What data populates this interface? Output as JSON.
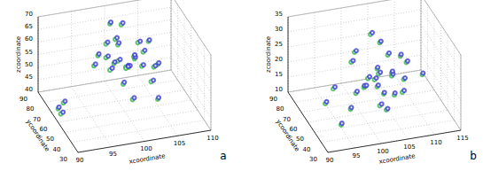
{
  "chart_data": [
    {
      "type": "scatter",
      "annotation": "a",
      "x_label": "xcoordinate",
      "y_label": "ycoordinate",
      "z_label": "zcoordinate",
      "xlim": [
        90,
        110
      ],
      "xticks": [
        90,
        95,
        100,
        105,
        110
      ],
      "ylim": [
        30,
        90
      ],
      "yticks": [
        30,
        40,
        50,
        60,
        70,
        80,
        90
      ],
      "zlim": [
        40,
        70
      ],
      "zticks": [
        40,
        45,
        50,
        55,
        60,
        65,
        70
      ],
      "grid": true,
      "marker": "circle",
      "series": [
        {
          "color": "#33b54a",
          "values": [
            [
              101,
              75,
              68
            ],
            [
              100,
              82,
              66
            ],
            [
              103,
              70,
              62
            ],
            [
              99,
              78,
              60
            ],
            [
              102,
              65,
              58
            ],
            [
              104,
              72,
              57
            ],
            [
              100,
              70,
              56
            ],
            [
              98,
              80,
              55
            ],
            [
              101,
              68,
              54
            ],
            [
              103,
              76,
              54
            ],
            [
              105,
              66,
              53
            ],
            [
              99,
              72,
              52
            ],
            [
              102,
              74,
              51
            ],
            [
              100,
              62,
              50
            ],
            [
              104,
              60,
              50
            ],
            [
              106,
              70,
              52
            ],
            [
              97,
              76,
              53
            ],
            [
              101,
              80,
              58
            ],
            [
              103,
              64,
              55
            ],
            [
              99,
              66,
              57
            ],
            [
              102,
              78,
              49
            ],
            [
              105,
              74,
              60
            ],
            [
              100,
              74,
              63
            ],
            [
              98,
              68,
              59
            ],
            [
              91,
              70,
              41
            ],
            [
              92,
              72,
              42
            ],
            [
              91,
              66,
              40.5
            ],
            [
              104,
              50,
              47
            ],
            [
              101,
              58,
              45
            ]
          ]
        },
        {
          "color": "#3b3bd1",
          "values": [
            [
              101.3,
              75.5,
              68.4
            ],
            [
              100.2,
              82.6,
              66.3
            ],
            [
              103.4,
              70.4,
              62.2
            ],
            [
              99.3,
              78.3,
              60.5
            ],
            [
              102.2,
              65.7,
              58.3
            ],
            [
              104.3,
              72.4,
              57.4
            ],
            [
              100.4,
              70.6,
              56.2
            ],
            [
              98.2,
              80.5,
              55.4
            ],
            [
              101.4,
              68.3,
              54.3
            ],
            [
              103.2,
              76.6,
              54.4
            ],
            [
              105.3,
              66.4,
              53.2
            ],
            [
              99.4,
              72.5,
              52.4
            ],
            [
              102.3,
              74.6,
              51.3
            ],
            [
              100.2,
              62.4,
              50.5
            ],
            [
              104.4,
              60.5,
              50.2
            ],
            [
              106.2,
              70.3,
              52.4
            ],
            [
              97.3,
              76.6,
              53.3
            ],
            [
              101.2,
              80.4,
              58.5
            ],
            [
              103.3,
              64.5,
              55.2
            ],
            [
              99.2,
              66.6,
              57.3
            ],
            [
              102.4,
              78.4,
              49.4
            ],
            [
              105.2,
              74.5,
              60.3
            ],
            [
              100.3,
              74.3,
              63.4
            ],
            [
              98.4,
              68.6,
              59.2
            ],
            [
              91.2,
              70.5,
              41.3
            ],
            [
              92.3,
              72.4,
              42.4
            ],
            [
              91.4,
              66.5,
              40.8
            ],
            [
              104.2,
              50.6,
              47.3
            ],
            [
              101.3,
              58.4,
              45.4
            ]
          ]
        }
      ]
    },
    {
      "type": "scatter",
      "annotation": "b",
      "x_label": "xcoordinate",
      "y_label": "ycoordinate",
      "z_label": "zcoordinate",
      "xlim": [
        90,
        115
      ],
      "xticks": [
        90,
        95,
        100,
        105,
        110,
        115
      ],
      "ylim": [
        30,
        90
      ],
      "yticks": [
        30,
        40,
        50,
        60,
        70,
        80,
        90
      ],
      "zlim": [
        10,
        35
      ],
      "zticks": [
        10,
        15,
        20,
        25,
        30,
        35
      ],
      "grid": true,
      "marker": "circle",
      "series": [
        {
          "color": "#33b54a",
          "values": [
            [
              103,
              70,
              32
            ],
            [
              105,
              72,
              28
            ],
            [
              108,
              65,
              25
            ],
            [
              100,
              75,
              22
            ],
            [
              104,
              68,
              21
            ],
            [
              106,
              62,
              20
            ],
            [
              102,
              66,
              19
            ],
            [
              107,
              70,
              18
            ],
            [
              103,
              60,
              18
            ],
            [
              105,
              74,
              17
            ],
            [
              101,
              64,
              17
            ],
            [
              109,
              68,
              16
            ],
            [
              104,
              72,
              16
            ],
            [
              106,
              58,
              15
            ],
            [
              102,
              70,
              15
            ],
            [
              108,
              62,
              14
            ],
            [
              100,
              68,
              14
            ],
            [
              105,
              66,
              13
            ],
            [
              103,
              56,
              13
            ],
            [
              110,
              72,
              20
            ],
            [
              98,
              60,
              12
            ],
            [
              96,
              70,
              16
            ],
            [
              94,
              66,
              13
            ],
            [
              112,
              64,
              18
            ],
            [
              107,
              76,
              22
            ],
            [
              101,
              78,
              24
            ],
            [
              95,
              50,
              11
            ],
            [
              104,
              54,
              12
            ]
          ]
        },
        {
          "color": "#3b3bd1",
          "values": [
            [
              103.4,
              70.5,
              32.3
            ],
            [
              105.3,
              72.6,
              28.2
            ],
            [
              108.2,
              65.4,
              25.4
            ],
            [
              100.4,
              75.3,
              22.3
            ],
            [
              104.2,
              68.6,
              21.2
            ],
            [
              106.3,
              62.4,
              20.4
            ],
            [
              102.4,
              66.5,
              19.3
            ],
            [
              107.2,
              70.4,
              18.4
            ],
            [
              103.3,
              60.6,
              18.2
            ],
            [
              105.4,
              74.3,
              17.3
            ],
            [
              101.2,
              64.5,
              17.4
            ],
            [
              109.3,
              68.4,
              16.2
            ],
            [
              104.4,
              72.5,
              16.3
            ],
            [
              106.2,
              58.6,
              15.4
            ],
            [
              102.3,
              70.3,
              15.2
            ],
            [
              108.4,
              62.5,
              14.3
            ],
            [
              100.3,
              68.4,
              14.4
            ],
            [
              105.2,
              66.6,
              13.2
            ],
            [
              103.4,
              56.4,
              13.3
            ],
            [
              110.3,
              72.5,
              20.2
            ],
            [
              98.2,
              60.3,
              12.4
            ],
            [
              96.4,
              70.6,
              16.3
            ],
            [
              94.3,
              66.4,
              13.4
            ],
            [
              112.2,
              64.5,
              18.3
            ],
            [
              107.3,
              76.4,
              22.4
            ],
            [
              101.4,
              78.6,
              24.2
            ],
            [
              95.2,
              50.5,
              11.3
            ],
            [
              104.3,
              54.4,
              12.2
            ]
          ]
        }
      ]
    }
  ]
}
